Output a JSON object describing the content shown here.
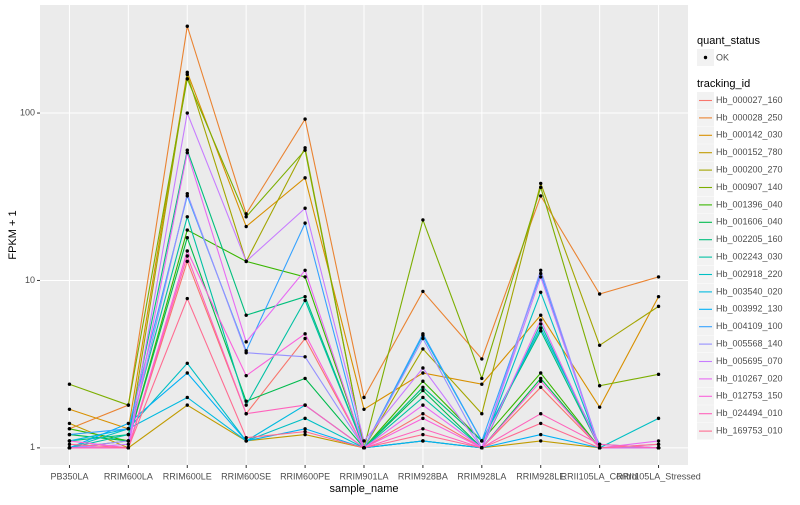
{
  "chart_data": {
    "type": "line",
    "log_y": true,
    "grid": true,
    "xlabel": "sample_name",
    "ylabel": "FPKM + 1",
    "categories": [
      "PB350LA",
      "RRIM600LA",
      "RRIM600LE",
      "RRIM600SE",
      "RRIM600PE",
      "RRIM901LA",
      "RRIM928BA",
      "RRIM928LA",
      "RRIM928LE",
      "RRII105LA_Control",
      "RRII105LA_Stressed"
    ],
    "ylim": [
      0.79,
      442
    ],
    "yticks": [
      1,
      10,
      100
    ],
    "point_legend": {
      "title": "quant_status",
      "label": "OK",
      "color": "#000000"
    },
    "legend_title": "tracking_id",
    "series": [
      {
        "name": "Hb_000027_160",
        "color": "#F8766D",
        "values": [
          1.0,
          1.0,
          13,
          1.6,
          4.5,
          1.0,
          1.6,
          1.0,
          2.3,
          1.0,
          1.0
        ]
      },
      {
        "name": "Hb_000028_250",
        "color": "#EA8331",
        "values": [
          1.3,
          1.8,
          330,
          25,
          92,
          2.0,
          8.6,
          3.4,
          32,
          8.3,
          10.5
        ]
      },
      {
        "name": "Hb_000142_030",
        "color": "#D89000",
        "values": [
          1.7,
          1.3,
          175,
          21,
          41,
          1.7,
          2.8,
          2.4,
          6.2,
          1.75,
          8.0
        ]
      },
      {
        "name": "Hb_000152_780",
        "color": "#C09B00",
        "values": [
          1.4,
          1.0,
          1.8,
          1.1,
          1.2,
          1.0,
          1.1,
          1.0,
          1.1,
          1.0,
          1.0
        ]
      },
      {
        "name": "Hb_000200_270",
        "color": "#A3A500",
        "values": [
          1.0,
          1.1,
          170,
          13,
          62,
          1.0,
          3.9,
          1.6,
          38,
          4.1,
          7.0
        ]
      },
      {
        "name": "Hb_000907_140",
        "color": "#7CAE00",
        "values": [
          2.4,
          1.8,
          160,
          24,
          60,
          1.0,
          23,
          2.6,
          36,
          2.35,
          2.75
        ]
      },
      {
        "name": "Hb_001396_040",
        "color": "#39B600",
        "values": [
          1.3,
          1.1,
          20,
          13,
          10.5,
          1.0,
          2.5,
          1.1,
          2.8,
          1.0,
          1.0
        ]
      },
      {
        "name": "Hb_001606_040",
        "color": "#00BB4E",
        "values": [
          1.2,
          1.1,
          18,
          1.9,
          2.6,
          1.0,
          2.2,
          1.0,
          2.6,
          1.0,
          1.0
        ]
      },
      {
        "name": "Hb_002205_160",
        "color": "#00BF7D",
        "values": [
          1.1,
          1.2,
          60,
          6.2,
          8.0,
          1.0,
          2.3,
          1.1,
          5.0,
          1.0,
          1.0
        ]
      },
      {
        "name": "Hb_002243_030",
        "color": "#00C1A3",
        "values": [
          1.0,
          1.2,
          24,
          1.8,
          7.6,
          1.0,
          2.0,
          1.0,
          5.5,
          1.0,
          1.0
        ]
      },
      {
        "name": "Hb_002918_220",
        "color": "#00BFC4",
        "values": [
          1.0,
          1.3,
          3.2,
          1.1,
          1.5,
          1.0,
          1.1,
          1.0,
          8.5,
          1.0,
          1.5
        ]
      },
      {
        "name": "Hb_003540_020",
        "color": "#00BAE0",
        "values": [
          1.1,
          1.3,
          2.0,
          1.1,
          1.8,
          1.0,
          4.7,
          1.1,
          5.2,
          1.05,
          1.0
        ]
      },
      {
        "name": "Hb_003992_130",
        "color": "#00B0F6",
        "values": [
          1.0,
          1.4,
          2.8,
          1.1,
          1.3,
          1.0,
          1.1,
          1.0,
          1.2,
          1.0,
          1.0
        ]
      },
      {
        "name": "Hb_004109_100",
        "color": "#35A2FF",
        "values": [
          1.2,
          1.3,
          32,
          3.8,
          22,
          1.0,
          4.8,
          1.1,
          11,
          1.0,
          1.0
        ]
      },
      {
        "name": "Hb_005568_140",
        "color": "#9590FF",
        "values": [
          1.0,
          1.1,
          33,
          3.7,
          3.5,
          1.0,
          4.5,
          1.0,
          11.5,
          1.0,
          1.0
        ]
      },
      {
        "name": "Hb_005695_070",
        "color": "#C77CFF",
        "values": [
          1.0,
          1.05,
          100,
          13,
          27,
          1.1,
          3.0,
          1.0,
          10.5,
          1.0,
          1.05
        ]
      },
      {
        "name": "Hb_010267_020",
        "color": "#E76BF3",
        "values": [
          1.0,
          1.0,
          58,
          4.3,
          11.5,
          1.0,
          1.8,
          1.0,
          5.8,
          1.0,
          1.1
        ]
      },
      {
        "name": "Hb_012753_150",
        "color": "#FA62DB",
        "values": [
          1.1,
          1.0,
          15,
          2.7,
          4.8,
          1.0,
          1.5,
          1.0,
          2.5,
          1.0,
          1.0
        ]
      },
      {
        "name": "Hb_024494_010",
        "color": "#FF62BC",
        "values": [
          1.0,
          1.0,
          14,
          1.6,
          1.8,
          1.0,
          1.3,
          1.0,
          1.6,
          1.05,
          1.0
        ]
      },
      {
        "name": "Hb_169753_010",
        "color": "#FF6C91",
        "values": [
          1.05,
          1.0,
          7.8,
          1.15,
          1.25,
          1.0,
          1.2,
          1.0,
          1.4,
          1.0,
          1.05
        ]
      }
    ]
  }
}
